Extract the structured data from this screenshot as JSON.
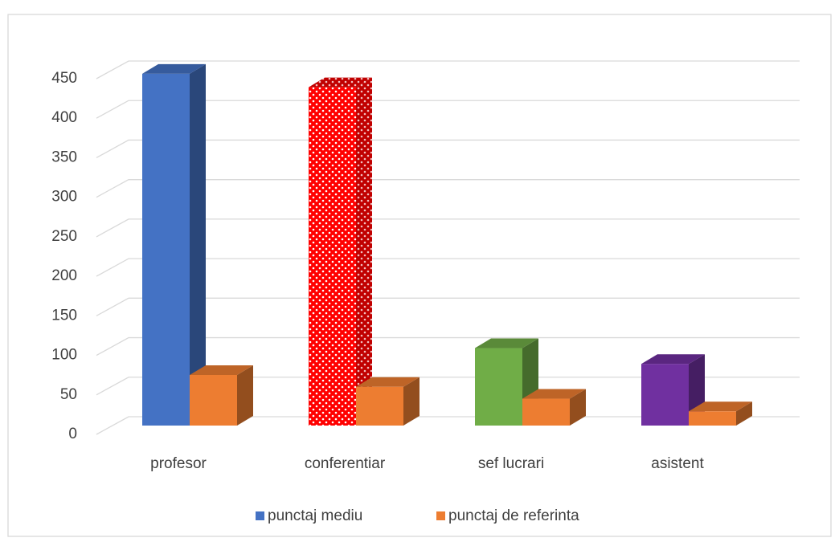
{
  "chart_data": {
    "type": "bar3d",
    "categories": [
      "profesor",
      "conferentiar",
      "sef lucrari",
      "asistent"
    ],
    "series": [
      {
        "name": "punctaj mediu",
        "color": "#4472c4",
        "colors": [
          "#4472c4",
          "#ff0000",
          "#70ad47",
          "#7030a0"
        ],
        "hatch": [
          false,
          true,
          false,
          false
        ],
        "values": [
          445,
          428,
          98,
          78
        ]
      },
      {
        "name": "punctaj de referinta",
        "color": "#ed7d31",
        "values": [
          64,
          49,
          34,
          18
        ]
      }
    ],
    "ylim": [
      0,
      450
    ],
    "yticks": [
      0,
      50,
      100,
      150,
      200,
      250,
      300,
      350,
      400,
      450
    ],
    "grid": true,
    "legend": "bottom"
  }
}
